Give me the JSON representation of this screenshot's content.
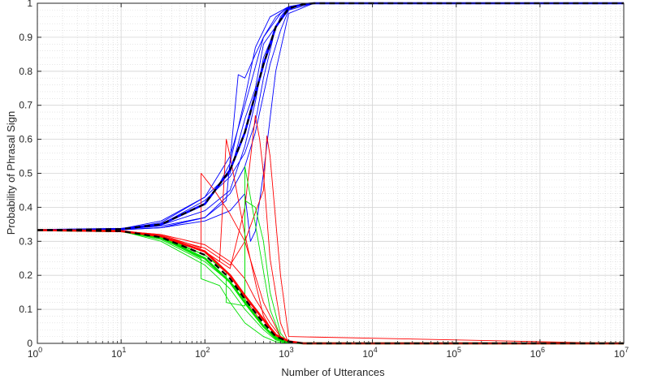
{
  "chart_data": {
    "type": "line",
    "title": "",
    "xlabel": "Number of Utterances",
    "ylabel": "Probability of Phrasal Sign",
    "x_scale": "log",
    "xlim": [
      1,
      10000000
    ],
    "ylim": [
      0,
      1
    ],
    "grid": "on (major and minor)",
    "legend": "none",
    "x_ticks": [
      {
        "base": "10",
        "exp": "0",
        "value": 1
      },
      {
        "base": "10",
        "exp": "1",
        "value": 10
      },
      {
        "base": "10",
        "exp": "2",
        "value": 100
      },
      {
        "base": "10",
        "exp": "3",
        "value": 1000
      },
      {
        "base": "10",
        "exp": "4",
        "value": 10000
      },
      {
        "base": "10",
        "exp": "5",
        "value": 100000
      },
      {
        "base": "10",
        "exp": "6",
        "value": 1000000
      },
      {
        "base": "10",
        "exp": "7",
        "value": 10000000
      }
    ],
    "y_ticks": [
      "0",
      "0.1",
      "0.2",
      "0.3",
      "0.4",
      "0.5",
      "0.6",
      "0.7",
      "0.8",
      "0.9",
      "1"
    ],
    "series": [
      {
        "group": "blue runs",
        "color": "#0000ff",
        "style": "thin",
        "x": [
          1,
          10,
          30,
          100,
          200,
          300,
          500,
          800,
          1000,
          1500,
          2000,
          10000000
        ],
        "y": [
          0.333,
          0.337,
          0.36,
          0.43,
          0.55,
          0.7,
          0.9,
          0.97,
          0.99,
          0.998,
          1.0,
          1.0
        ]
      },
      {
        "group": "blue runs",
        "color": "#0000ff",
        "style": "thin",
        "x": [
          1,
          10,
          30,
          100,
          150,
          200,
          300,
          400,
          600,
          1000,
          2000,
          10000000
        ],
        "y": [
          0.333,
          0.336,
          0.35,
          0.41,
          0.47,
          0.53,
          0.72,
          0.87,
          0.96,
          0.99,
          1.0,
          1.0
        ]
      },
      {
        "group": "blue runs",
        "color": "#0000ff",
        "style": "thin",
        "x": [
          1,
          10,
          30,
          100,
          200,
          300,
          400,
          500,
          800,
          1000,
          2000,
          10000000
        ],
        "y": [
          0.333,
          0.335,
          0.348,
          0.39,
          0.45,
          0.58,
          0.71,
          0.84,
          0.96,
          0.99,
          1.0,
          1.0
        ]
      },
      {
        "group": "blue runs",
        "color": "#0000ff",
        "style": "thin",
        "x": [
          1,
          10,
          30,
          100,
          200,
          300,
          400,
          600,
          800,
          1000,
          2000,
          10000000
        ],
        "y": [
          0.333,
          0.335,
          0.345,
          0.37,
          0.44,
          0.52,
          0.62,
          0.82,
          0.92,
          0.98,
          1.0,
          1.0
        ]
      },
      {
        "group": "blue runs",
        "color": "#0000ff",
        "style": "thin",
        "x": [
          1,
          10,
          30,
          100,
          180,
          250,
          300,
          400,
          500,
          700,
          1000,
          2000,
          10000000
        ],
        "y": [
          0.333,
          0.334,
          0.34,
          0.37,
          0.42,
          0.79,
          0.78,
          0.85,
          0.9,
          0.96,
          0.99,
          1.0,
          1.0
        ]
      },
      {
        "group": "blue runs",
        "color": "#0000ff",
        "style": "thin",
        "x": [
          1,
          10,
          30,
          100,
          200,
          300,
          400,
          500,
          700,
          1000,
          1500,
          10000000
        ],
        "y": [
          0.333,
          0.336,
          0.35,
          0.42,
          0.49,
          0.56,
          0.65,
          0.78,
          0.93,
          0.98,
          1.0,
          1.0
        ]
      },
      {
        "group": "blue runs",
        "color": "#0000ff",
        "style": "thin",
        "x": [
          1,
          10,
          30,
          100,
          200,
          300,
          350,
          400,
          500,
          700,
          1000,
          2000,
          10000000
        ],
        "y": [
          0.333,
          0.334,
          0.34,
          0.36,
          0.39,
          0.44,
          0.3,
          0.33,
          0.5,
          0.8,
          0.97,
          1.0,
          1.0
        ]
      },
      {
        "group": "blue runs",
        "color": "#0000ff",
        "style": "thin",
        "x": [
          1,
          10,
          30,
          100,
          200,
          300,
          400,
          500,
          1000,
          1500,
          2000,
          10000000
        ],
        "y": [
          0.333,
          0.336,
          0.355,
          0.43,
          0.5,
          0.66,
          0.75,
          0.88,
          0.985,
          0.997,
          1.0,
          1.0
        ]
      },
      {
        "group": "blue mean",
        "color": "#0000ff",
        "style": "thick",
        "x": [
          1,
          10,
          30,
          100,
          200,
          300,
          500,
          700,
          1000,
          1500,
          2000,
          10000000
        ],
        "y": [
          0.333,
          0.336,
          0.35,
          0.41,
          0.51,
          0.62,
          0.82,
          0.93,
          0.985,
          0.997,
          1.0,
          1.0
        ]
      },
      {
        "group": "black dashed",
        "color": "#000000",
        "style": "dashed",
        "x": [
          1,
          10,
          30,
          100,
          200,
          300,
          500,
          700,
          1000,
          1500,
          2000,
          10000000
        ],
        "y": [
          0.333,
          0.336,
          0.35,
          0.41,
          0.51,
          0.62,
          0.82,
          0.93,
          0.985,
          0.997,
          1.0,
          1.0
        ]
      },
      {
        "group": "red runs",
        "color": "#ff0000",
        "style": "thin",
        "x": [
          1,
          10,
          30,
          100,
          200,
          300,
          400,
          500,
          700,
          1000,
          1500,
          10000000
        ],
        "y": [
          0.333,
          0.33,
          0.31,
          0.26,
          0.2,
          0.13,
          0.09,
          0.05,
          0.02,
          0.005,
          0.0,
          0.0
        ]
      },
      {
        "group": "red runs",
        "color": "#ff0000",
        "style": "thin",
        "x": [
          1,
          10,
          30,
          90,
          90,
          130,
          200,
          300,
          500,
          800,
          1000,
          1500,
          10000000
        ],
        "y": [
          0.333,
          0.33,
          0.32,
          0.28,
          0.5,
          0.45,
          0.38,
          0.3,
          0.12,
          0.02,
          0.005,
          0.0,
          0.0
        ]
      },
      {
        "group": "red runs",
        "color": "#ff0000",
        "style": "thin",
        "x": [
          1,
          10,
          30,
          100,
          150,
          180,
          200,
          300,
          400,
          500,
          700,
          1000,
          10000000
        ],
        "y": [
          0.333,
          0.33,
          0.315,
          0.27,
          0.24,
          0.6,
          0.55,
          0.32,
          0.18,
          0.08,
          0.02,
          0.0,
          0.0
        ]
      },
      {
        "group": "red runs",
        "color": "#ff0000",
        "style": "thin",
        "x": [
          1,
          10,
          30,
          100,
          200,
          300,
          400,
          450,
          500,
          600,
          800,
          1000,
          10000000
        ],
        "y": [
          0.333,
          0.33,
          0.31,
          0.27,
          0.22,
          0.4,
          0.67,
          0.6,
          0.5,
          0.25,
          0.06,
          0.0,
          0.0
        ]
      },
      {
        "group": "red runs",
        "color": "#ff0000",
        "style": "thin",
        "x": [
          1,
          10,
          30,
          100,
          200,
          300,
          500,
          550,
          600,
          800,
          1000,
          10000000
        ],
        "y": [
          0.333,
          0.33,
          0.315,
          0.28,
          0.23,
          0.3,
          0.45,
          0.61,
          0.55,
          0.2,
          0.02,
          0.0
        ]
      },
      {
        "group": "red runs",
        "color": "#ff0000",
        "style": "thin",
        "x": [
          1,
          10,
          30,
          100,
          200,
          300,
          400,
          600,
          800,
          1000,
          1500,
          10000000
        ],
        "y": [
          0.333,
          0.33,
          0.32,
          0.29,
          0.24,
          0.19,
          0.13,
          0.06,
          0.02,
          0.005,
          0.0,
          0.0
        ]
      },
      {
        "group": "green runs",
        "color": "#00e000",
        "style": "thin",
        "x": [
          1,
          10,
          30,
          90,
          90,
          150,
          200,
          300,
          500,
          700,
          1000,
          10000000
        ],
        "y": [
          0.333,
          0.33,
          0.31,
          0.25,
          0.19,
          0.17,
          0.12,
          0.06,
          0.02,
          0.005,
          0.0,
          0.0
        ]
      },
      {
        "group": "green runs",
        "color": "#00e000",
        "style": "thin",
        "x": [
          1,
          10,
          30,
          100,
          180,
          180,
          300,
          300,
          400,
          600,
          800,
          1000,
          10000000
        ],
        "y": [
          0.333,
          0.33,
          0.31,
          0.26,
          0.21,
          0.12,
          0.11,
          0.52,
          0.35,
          0.1,
          0.02,
          0.0,
          0.0
        ]
      },
      {
        "group": "green runs",
        "color": "#00e000",
        "style": "thin",
        "x": [
          1,
          10,
          30,
          100,
          200,
          300,
          500,
          700,
          1000,
          10000000
        ],
        "y": [
          0.333,
          0.33,
          0.3,
          0.23,
          0.16,
          0.1,
          0.04,
          0.01,
          0.0,
          0.0
        ]
      },
      {
        "group": "green runs",
        "color": "#00e000",
        "style": "thin",
        "x": [
          1,
          10,
          30,
          100,
          200,
          300,
          300,
          400,
          500,
          600,
          800,
          1000,
          10000000
        ],
        "y": [
          0.333,
          0.33,
          0.305,
          0.24,
          0.18,
          0.14,
          0.42,
          0.4,
          0.3,
          0.15,
          0.03,
          0.0,
          0.0
        ]
      },
      {
        "group": "green runs",
        "color": "#00e000",
        "style": "thin",
        "x": [
          1,
          10,
          30,
          100,
          200,
          300,
          400,
          500,
          700,
          900,
          1200,
          10000000
        ],
        "y": [
          0.333,
          0.33,
          0.315,
          0.26,
          0.2,
          0.13,
          0.08,
          0.05,
          0.02,
          0.005,
          0.0,
          0.0
        ]
      },
      {
        "group": "green mean",
        "color": "#00e000",
        "style": "thick",
        "x": [
          1,
          10,
          30,
          100,
          200,
          300,
          500,
          700,
          1000,
          1500,
          10000000
        ],
        "y": [
          0.333,
          0.33,
          0.31,
          0.25,
          0.18,
          0.12,
          0.05,
          0.015,
          0.003,
          0.0,
          0.0
        ]
      },
      {
        "group": "red mean",
        "color": "#ff0000",
        "style": "thick",
        "x": [
          1,
          10,
          30,
          100,
          200,
          300,
          500,
          700,
          1000,
          1500,
          10000000
        ],
        "y": [
          0.333,
          0.33,
          0.315,
          0.27,
          0.2,
          0.14,
          0.07,
          0.025,
          0.006,
          0.0,
          0.0
        ]
      },
      {
        "group": "black dashed",
        "color": "#000000",
        "style": "dashed",
        "x": [
          1,
          10,
          30,
          100,
          200,
          300,
          500,
          700,
          1000,
          1500,
          10000000
        ],
        "y": [
          0.333,
          0.33,
          0.312,
          0.26,
          0.19,
          0.13,
          0.06,
          0.02,
          0.005,
          0.0,
          0.0
        ]
      }
    ]
  }
}
